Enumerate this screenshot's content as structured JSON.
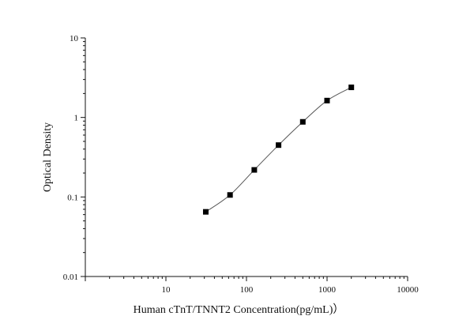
{
  "chart_data": {
    "type": "scatter",
    "title": "",
    "xlabel": "Human cTnT/TNNT2  Concentration(pg/mL)）",
    "ylabel": "Optical Density",
    "xscale": "log",
    "yscale": "log",
    "xlim": [
      1,
      10000
    ],
    "ylim": [
      0.01,
      10
    ],
    "xticks": [
      "10",
      "100",
      "1000",
      "10000"
    ],
    "xtick_values": [
      10,
      100,
      1000,
      10000
    ],
    "yticks": [
      "0.01",
      "0.1",
      "1",
      "10"
    ],
    "ytick_values": [
      0.01,
      0.1,
      1,
      10
    ],
    "grid": false,
    "legend": "none",
    "marker": "square",
    "line": "smooth",
    "series": [
      {
        "x": [
          31.25,
          62.5,
          125,
          250,
          500,
          1000,
          2000
        ],
        "y": [
          0.065,
          0.106,
          0.219,
          0.449,
          0.88,
          1.63,
          2.39
        ]
      }
    ],
    "colors": {
      "marker": "#000000",
      "line": "#555555",
      "axis": "#111111"
    }
  }
}
